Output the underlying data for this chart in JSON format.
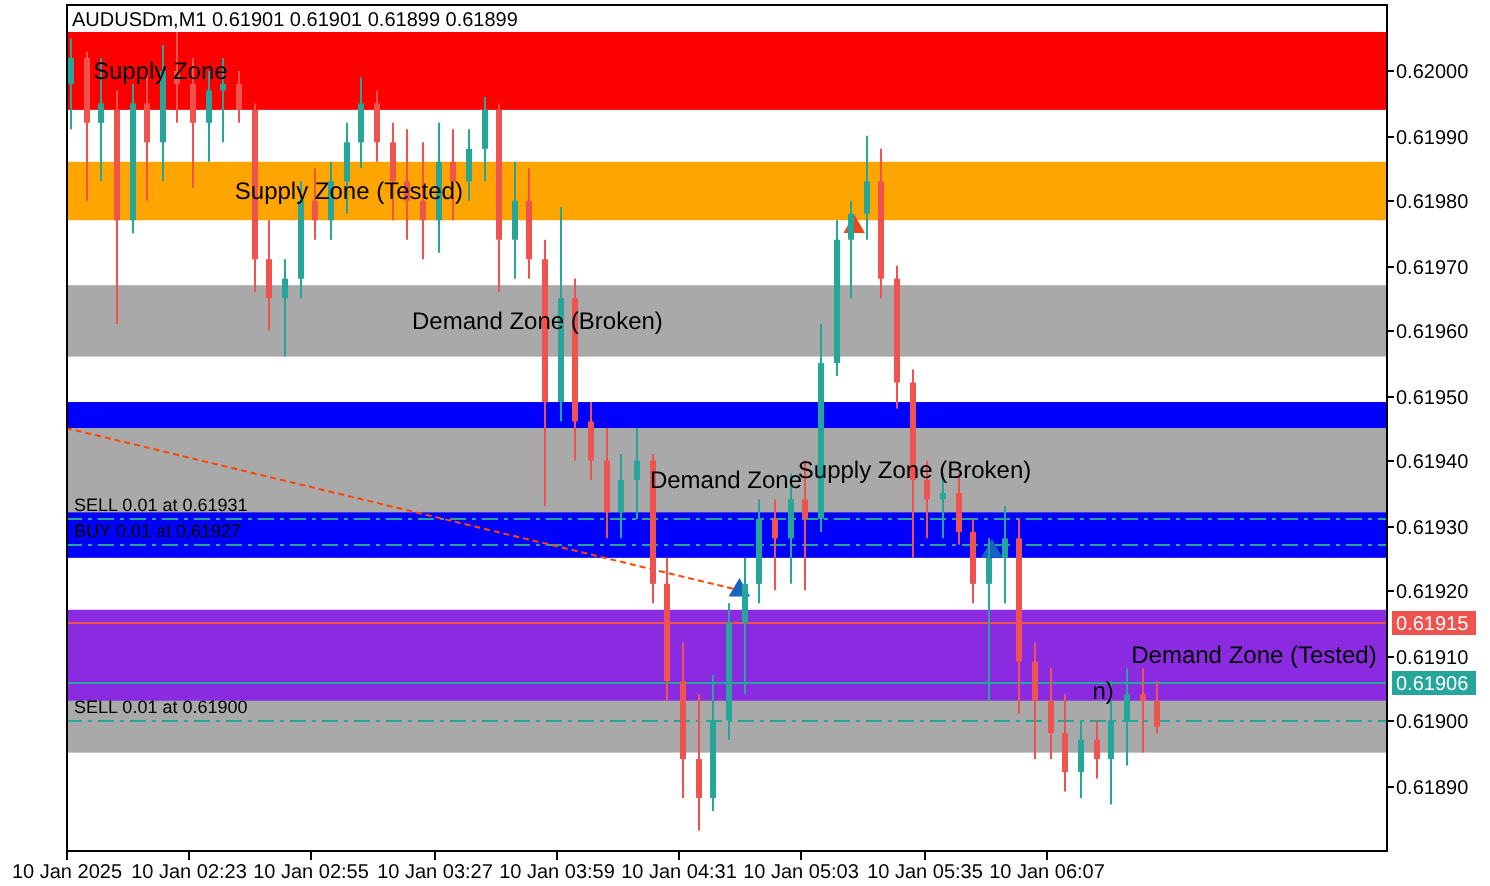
{
  "chart_data": {
    "type": "candlestick",
    "title": "AUDUSDm,M1  0.61901 0.61901 0.61899 0.61899",
    "x": [
      "2025-01-10T01:52",
      "2025-01-10T01:56",
      "2025-01-10T02:00",
      "2025-01-10T02:04",
      "2025-01-10T02:08",
      "2025-01-10T02:12",
      "2025-01-10T02:16",
      "2025-01-10T02:20",
      "2025-01-10T02:24",
      "2025-01-10T02:28",
      "2025-01-10T02:32",
      "2025-01-10T02:36",
      "2025-01-10T02:40",
      "2025-01-10T02:44",
      "2025-01-10T02:48",
      "2025-01-10T02:52",
      "2025-01-10T02:56",
      "2025-01-10T03:00",
      "2025-01-10T03:04",
      "2025-01-10T03:08",
      "2025-01-10T03:12",
      "2025-01-10T03:16",
      "2025-01-10T03:20",
      "2025-01-10T03:24",
      "2025-01-10T03:28",
      "2025-01-10T03:32",
      "2025-01-10T03:36",
      "2025-01-10T03:40",
      "2025-01-10T03:44",
      "2025-01-10T03:48",
      "2025-01-10T03:52",
      "2025-01-10T03:56",
      "2025-01-10T04:00",
      "2025-01-10T04:04",
      "2025-01-10T04:08",
      "2025-01-10T04:12",
      "2025-01-10T04:16",
      "2025-01-10T04:20",
      "2025-01-10T04:24",
      "2025-01-10T04:28",
      "2025-01-10T04:32",
      "2025-01-10T04:36",
      "2025-01-10T04:40",
      "2025-01-10T04:44",
      "2025-01-10T04:48",
      "2025-01-10T04:52",
      "2025-01-10T04:56",
      "2025-01-10T05:00",
      "2025-01-10T05:04",
      "2025-01-10T05:08",
      "2025-01-10T05:12",
      "2025-01-10T05:16",
      "2025-01-10T05:20",
      "2025-01-10T05:24",
      "2025-01-10T05:28",
      "2025-01-10T05:32",
      "2025-01-10T05:36",
      "2025-01-10T05:40",
      "2025-01-10T05:44",
      "2025-01-10T05:48",
      "2025-01-10T05:52",
      "2025-01-10T05:56",
      "2025-01-10T06:00",
      "2025-01-10T06:04",
      "2025-01-10T06:08",
      "2025-01-10T06:12",
      "2025-01-10T06:16",
      "2025-01-10T06:20",
      "2025-01-10T06:24",
      "2025-01-10T06:28",
      "2025-01-10T06:32",
      "2025-01-10T06:36"
    ],
    "ohlc": [
      [
        0.61998,
        0.62005,
        0.61991,
        0.62002
      ],
      [
        0.62002,
        0.62003,
        0.6198,
        0.61992
      ],
      [
        0.61992,
        0.62002,
        0.61983,
        0.61995
      ],
      [
        0.61994,
        0.61997,
        0.61961,
        0.61977
      ],
      [
        0.61977,
        0.61998,
        0.61975,
        0.61995
      ],
      [
        0.61995,
        0.62,
        0.6198,
        0.61989
      ],
      [
        0.61989,
        0.62004,
        0.61983,
        0.62
      ],
      [
        0.62,
        0.62006,
        0.61992,
        0.61998
      ],
      [
        0.61998,
        0.62002,
        0.61982,
        0.61992
      ],
      [
        0.61992,
        0.62,
        0.61986,
        0.61997
      ],
      [
        0.61997,
        0.62002,
        0.61989,
        0.61998
      ],
      [
        0.61998,
        0.62,
        0.61992,
        0.61994
      ],
      [
        0.61994,
        0.61995,
        0.61966,
        0.61971
      ],
      [
        0.61971,
        0.61977,
        0.6196,
        0.61965
      ],
      [
        0.61965,
        0.61971,
        0.61956,
        0.61968
      ],
      [
        0.61968,
        0.61983,
        0.61965,
        0.6198
      ],
      [
        0.6198,
        0.61985,
        0.61974,
        0.61977
      ],
      [
        0.61977,
        0.61986,
        0.61974,
        0.61983
      ],
      [
        0.61983,
        0.61992,
        0.61978,
        0.61989
      ],
      [
        0.61989,
        0.61999,
        0.61985,
        0.61995
      ],
      [
        0.61995,
        0.61997,
        0.61986,
        0.61989
      ],
      [
        0.61989,
        0.61992,
        0.61977,
        0.61983
      ],
      [
        0.61983,
        0.61991,
        0.61974,
        0.6198
      ],
      [
        0.6198,
        0.61989,
        0.61971,
        0.61977
      ],
      [
        0.61977,
        0.61992,
        0.61972,
        0.61986
      ],
      [
        0.61986,
        0.61991,
        0.61977,
        0.61983
      ],
      [
        0.61983,
        0.61991,
        0.6198,
        0.61988
      ],
      [
        0.61988,
        0.61996,
        0.61983,
        0.61994
      ],
      [
        0.61994,
        0.61995,
        0.61966,
        0.61974
      ],
      [
        0.61974,
        0.61986,
        0.61968,
        0.6198
      ],
      [
        0.6198,
        0.61985,
        0.61968,
        0.61971
      ],
      [
        0.61971,
        0.61974,
        0.61933,
        0.61949
      ],
      [
        0.61949,
        0.61979,
        0.61946,
        0.61965
      ],
      [
        0.61965,
        0.61968,
        0.6194,
        0.61946
      ],
      [
        0.61946,
        0.61949,
        0.61937,
        0.6194
      ],
      [
        0.6194,
        0.61945,
        0.61928,
        0.61932
      ],
      [
        0.61932,
        0.61941,
        0.61928,
        0.61937
      ],
      [
        0.61937,
        0.61945,
        0.61931,
        0.6194
      ],
      [
        0.6194,
        0.61941,
        0.61918,
        0.61921
      ],
      [
        0.61921,
        0.61925,
        0.61903,
        0.61906
      ],
      [
        0.61906,
        0.61912,
        0.61888,
        0.61894
      ],
      [
        0.61894,
        0.61904,
        0.61883,
        0.61888
      ],
      [
        0.61888,
        0.61907,
        0.61886,
        0.619
      ],
      [
        0.619,
        0.61918,
        0.61897,
        0.61915
      ],
      [
        0.61915,
        0.61925,
        0.61904,
        0.61921
      ],
      [
        0.61921,
        0.61934,
        0.61918,
        0.61931
      ],
      [
        0.61931,
        0.61934,
        0.6192,
        0.61928
      ],
      [
        0.61928,
        0.61938,
        0.61921,
        0.61934
      ],
      [
        0.61934,
        0.6194,
        0.6192,
        0.61931
      ],
      [
        0.61931,
        0.61961,
        0.61929,
        0.61955
      ],
      [
        0.61955,
        0.61977,
        0.61953,
        0.61974
      ],
      [
        0.61974,
        0.6198,
        0.61965,
        0.61978
      ],
      [
        0.61978,
        0.6199,
        0.61974,
        0.61983
      ],
      [
        0.61983,
        0.61988,
        0.61965,
        0.61968
      ],
      [
        0.61968,
        0.6197,
        0.61948,
        0.61952
      ],
      [
        0.61952,
        0.61954,
        0.61925,
        0.61937
      ],
      [
        0.61937,
        0.6194,
        0.61928,
        0.61934
      ],
      [
        0.61934,
        0.61938,
        0.61928,
        0.61935
      ],
      [
        0.61935,
        0.61938,
        0.61927,
        0.61929
      ],
      [
        0.61929,
        0.61931,
        0.61918,
        0.61921
      ],
      [
        0.61921,
        0.61928,
        0.61903,
        0.61925
      ],
      [
        0.61925,
        0.61933,
        0.61918,
        0.61928
      ],
      [
        0.61928,
        0.61931,
        0.61901,
        0.61909
      ],
      [
        0.61909,
        0.61912,
        0.61894,
        0.61903
      ],
      [
        0.61903,
        0.61908,
        0.61894,
        0.61898
      ],
      [
        0.61898,
        0.61904,
        0.61889,
        0.61892
      ],
      [
        0.61892,
        0.619,
        0.61888,
        0.61897
      ],
      [
        0.61897,
        0.619,
        0.61891,
        0.61894
      ],
      [
        0.61894,
        0.61906,
        0.61887,
        0.619
      ],
      [
        0.619,
        0.61908,
        0.61893,
        0.61904
      ],
      [
        0.61904,
        0.61908,
        0.61895,
        0.61903
      ],
      [
        0.61903,
        0.61906,
        0.61898,
        0.61899
      ]
    ],
    "colors": [
      "#26a69a",
      "#ef5350",
      "#26a69a",
      "#ef5350",
      "#26a69a",
      "#ef5350",
      "#26a69a",
      "#ef5350",
      "#ef5350",
      "#26a69a",
      "#26a69a",
      "#ef5350",
      "#ef5350",
      "#ef5350",
      "#26a69a",
      "#26a69a",
      "#ef5350",
      "#26a69a",
      "#26a69a",
      "#26a69a",
      "#ef5350",
      "#ef5350",
      "#ef5350",
      "#ef5350",
      "#26a69a",
      "#ef5350",
      "#26a69a",
      "#26a69a",
      "#ef5350",
      "#26a69a",
      "#ef5350",
      "#ef5350",
      "#26a69a",
      "#ef5350",
      "#ef5350",
      "#ef5350",
      "#26a69a",
      "#26a69a",
      "#ef5350",
      "#ef5350",
      "#ef5350",
      "#ef5350",
      "#26a69a",
      "#26a69a",
      "#26a69a",
      "#26a69a",
      "#ef5350",
      "#26a69a",
      "#ef5350",
      "#26a69a",
      "#26a69a",
      "#26a69a",
      "#26a69a",
      "#ef5350",
      "#ef5350",
      "#ef5350",
      "#ef5350",
      "#26a69a",
      "#ef5350",
      "#ef5350",
      "#26a69a",
      "#26a69a",
      "#ef5350",
      "#ef5350",
      "#ef5350",
      "#ef5350",
      "#26a69a",
      "#ef5350",
      "#26a69a",
      "#26a69a",
      "#ef5350",
      "#ef5350"
    ],
    "series": [
      {
        "type": "line",
        "x": [
          "2025-01-10T01:51",
          "2025-01-10T04:47"
        ],
        "values": [
          0.61945,
          0.6192
        ],
        "color": "#ff4500",
        "line_style": "dashed",
        "marker": "none"
      },
      {
        "type": "scatter",
        "x": [
          "2025-01-10T04:47",
          "2025-01-10T05:53"
        ],
        "values": [
          0.6192,
          0.61926
        ],
        "color": "#1565c0",
        "marker": "triangle"
      },
      {
        "type": "scatter",
        "x": [
          "2025-01-10T05:17"
        ],
        "values": [
          0.61976
        ],
        "color": "#e64a19",
        "marker": "triangle"
      }
    ],
    "bands": [
      {
        "axis": "y",
        "from": 0.61994,
        "to": 0.62006,
        "label": "Supply Zone",
        "color": "#ff0000"
      },
      {
        "axis": "y",
        "from": 0.61977,
        "to": 0.61986,
        "label": "Supply Zone (Tested)",
        "color": "#ffa500"
      },
      {
        "axis": "y",
        "from": 0.61956,
        "to": 0.61967,
        "label": "Demand Zone (Broken)",
        "color": "#a9a9a9"
      },
      {
        "axis": "y",
        "from": 0.61925,
        "to": 0.61949,
        "label": "Demand Zone",
        "color": "#0000ff"
      },
      {
        "axis": "y",
        "from": 0.61932,
        "to": 0.61945,
        "label": "Supply Zone (Broken)",
        "color": "#a9a9a9"
      },
      {
        "axis": "y",
        "from": 0.61895,
        "to": 0.61914,
        "label": "n)",
        "color": "#a9a9a9"
      },
      {
        "axis": "y",
        "from": 0.61903,
        "to": 0.61917,
        "label": "Demand Zone (Tested)",
        "color": "#8a2be2"
      }
    ],
    "ref_lines": [
      {
        "axis": "y",
        "value": 0.61915,
        "label": "0.61915",
        "color": "#ef5350",
        "line_style": "solid"
      },
      {
        "axis": "y",
        "value": 0.61906,
        "label": "0.61906",
        "color": "#26a69a",
        "line_style": "solid"
      },
      {
        "axis": "y",
        "value": 0.61931,
        "label": "SELL 0.01 at 0.61931",
        "color": "#26a69a",
        "line_style": "dashed"
      },
      {
        "axis": "y",
        "value": 0.61927,
        "label": "BUY 0.01 at 0.61927",
        "color": "#26a69a",
        "line_style": "dashed"
      },
      {
        "axis": "y",
        "value": 0.619,
        "label": "SELL 0.01 at 0.61900",
        "color": "#26a69a",
        "line_style": "dashed"
      }
    ],
    "xlim": [
      "2025-01-10T01:51",
      "2025-01-10T07:36"
    ],
    "xticks": [
      {
        "value": "2025-01-10T01:51",
        "label": "10 Jan 2025"
      },
      {
        "value": "2025-01-10T02:23",
        "label": "10 Jan 02:23"
      },
      {
        "value": "2025-01-10T02:55",
        "label": "10 Jan 02:55"
      },
      {
        "value": "2025-01-10T03:27",
        "label": "10 Jan 03:27"
      },
      {
        "value": "2025-01-10T03:59",
        "label": "10 Jan 03:59"
      },
      {
        "value": "2025-01-10T04:31",
        "label": "10 Jan 04:31"
      },
      {
        "value": "2025-01-10T05:03",
        "label": "10 Jan 05:03"
      },
      {
        "value": "2025-01-10T05:35",
        "label": "10 Jan 05:35"
      },
      {
        "value": "2025-01-10T06:07",
        "label": "10 Jan 06:07"
      }
    ],
    "ylim": [
      0.6188,
      0.6201
    ],
    "yticks": [
      {
        "value": 0.6189,
        "label": "0.61890"
      },
      {
        "value": 0.619,
        "label": "0.61900"
      },
      {
        "value": 0.6191,
        "label": "0.61910"
      },
      {
        "value": 0.6192,
        "label": "0.61920"
      },
      {
        "value": 0.6193,
        "label": "0.61930"
      },
      {
        "value": 0.6194,
        "label": "0.61940"
      },
      {
        "value": 0.6195,
        "label": "0.61950"
      },
      {
        "value": 0.6196,
        "label": "0.61960"
      },
      {
        "value": 0.6197,
        "label": "0.61970"
      },
      {
        "value": 0.6198,
        "label": "0.61980"
      },
      {
        "value": 0.6199,
        "label": "0.61990"
      },
      {
        "value": 0.62,
        "label": "0.62000"
      }
    ]
  }
}
